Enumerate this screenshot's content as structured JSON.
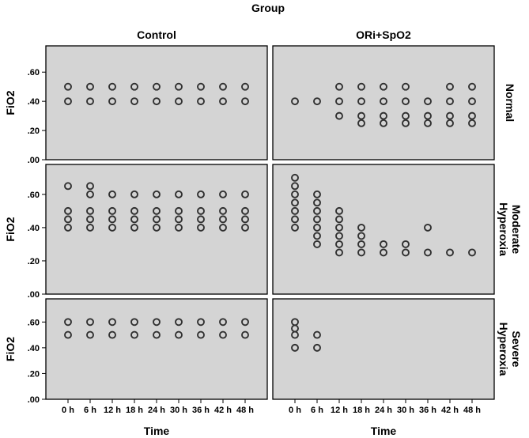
{
  "chart_data": {
    "type": "scatter",
    "title": "Group",
    "xlabel": "Time",
    "ylabel": "FiO2",
    "columns": [
      "Control",
      "ORi+SpO2"
    ],
    "rows": [
      "Normal",
      "Moderate\nHyperoxia",
      "Severe\nHyperoxia"
    ],
    "x_categories": [
      "0 h",
      "6 h",
      "12 h",
      "18 h",
      "24 h",
      "30 h",
      "36 h",
      "42 h",
      "48 h"
    ],
    "y_ticks": [
      ".00",
      ".20",
      ".40",
      ".60"
    ],
    "ylim": [
      0,
      0.78
    ],
    "grid": false,
    "panel_background": "#d4d4d4",
    "marker_color": "#303030",
    "panels": [
      {
        "row": "Normal",
        "column": "Control",
        "points": [
          [
            "0 h",
            0.5
          ],
          [
            "0 h",
            0.4
          ],
          [
            "6 h",
            0.5
          ],
          [
            "6 h",
            0.4
          ],
          [
            "12 h",
            0.5
          ],
          [
            "12 h",
            0.4
          ],
          [
            "18 h",
            0.5
          ],
          [
            "18 h",
            0.4
          ],
          [
            "24 h",
            0.5
          ],
          [
            "24 h",
            0.4
          ],
          [
            "30 h",
            0.5
          ],
          [
            "30 h",
            0.4
          ],
          [
            "36 h",
            0.5
          ],
          [
            "36 h",
            0.4
          ],
          [
            "42 h",
            0.5
          ],
          [
            "42 h",
            0.4
          ],
          [
            "48 h",
            0.5
          ],
          [
            "48 h",
            0.4
          ]
        ]
      },
      {
        "row": "Normal",
        "column": "ORi+SpO2",
        "points": [
          [
            "0 h",
            0.4
          ],
          [
            "6 h",
            0.4
          ],
          [
            "12 h",
            0.5
          ],
          [
            "12 h",
            0.4
          ],
          [
            "12 h",
            0.3
          ],
          [
            "18 h",
            0.5
          ],
          [
            "18 h",
            0.4
          ],
          [
            "18 h",
            0.3
          ],
          [
            "18 h",
            0.25
          ],
          [
            "24 h",
            0.5
          ],
          [
            "24 h",
            0.4
          ],
          [
            "24 h",
            0.3
          ],
          [
            "24 h",
            0.25
          ],
          [
            "30 h",
            0.5
          ],
          [
            "30 h",
            0.4
          ],
          [
            "30 h",
            0.3
          ],
          [
            "30 h",
            0.25
          ],
          [
            "36 h",
            0.4
          ],
          [
            "36 h",
            0.3
          ],
          [
            "36 h",
            0.25
          ],
          [
            "42 h",
            0.5
          ],
          [
            "42 h",
            0.4
          ],
          [
            "42 h",
            0.3
          ],
          [
            "42 h",
            0.25
          ],
          [
            "48 h",
            0.5
          ],
          [
            "48 h",
            0.4
          ],
          [
            "48 h",
            0.3
          ],
          [
            "48 h",
            0.25
          ]
        ]
      },
      {
        "row": "Moderate\nHyperoxia",
        "column": "Control",
        "points": [
          [
            "0 h",
            0.65
          ],
          [
            "0 h",
            0.5
          ],
          [
            "0 h",
            0.45
          ],
          [
            "0 h",
            0.4
          ],
          [
            "6 h",
            0.65
          ],
          [
            "6 h",
            0.6
          ],
          [
            "6 h",
            0.5
          ],
          [
            "6 h",
            0.45
          ],
          [
            "6 h",
            0.4
          ],
          [
            "12 h",
            0.6
          ],
          [
            "12 h",
            0.5
          ],
          [
            "12 h",
            0.45
          ],
          [
            "12 h",
            0.4
          ],
          [
            "18 h",
            0.6
          ],
          [
            "18 h",
            0.5
          ],
          [
            "18 h",
            0.45
          ],
          [
            "18 h",
            0.4
          ],
          [
            "24 h",
            0.6
          ],
          [
            "24 h",
            0.5
          ],
          [
            "24 h",
            0.45
          ],
          [
            "24 h",
            0.4
          ],
          [
            "30 h",
            0.6
          ],
          [
            "30 h",
            0.5
          ],
          [
            "30 h",
            0.45
          ],
          [
            "30 h",
            0.4
          ],
          [
            "36 h",
            0.6
          ],
          [
            "36 h",
            0.5
          ],
          [
            "36 h",
            0.45
          ],
          [
            "36 h",
            0.4
          ],
          [
            "42 h",
            0.6
          ],
          [
            "42 h",
            0.5
          ],
          [
            "42 h",
            0.45
          ],
          [
            "42 h",
            0.4
          ],
          [
            "48 h",
            0.6
          ],
          [
            "48 h",
            0.5
          ],
          [
            "48 h",
            0.45
          ],
          [
            "48 h",
            0.4
          ]
        ]
      },
      {
        "row": "Moderate\nHyperoxia",
        "column": "ORi+SpO2",
        "points": [
          [
            "0 h",
            0.7
          ],
          [
            "0 h",
            0.65
          ],
          [
            "0 h",
            0.6
          ],
          [
            "0 h",
            0.55
          ],
          [
            "0 h",
            0.5
          ],
          [
            "0 h",
            0.45
          ],
          [
            "0 h",
            0.4
          ],
          [
            "6 h",
            0.6
          ],
          [
            "6 h",
            0.55
          ],
          [
            "6 h",
            0.5
          ],
          [
            "6 h",
            0.45
          ],
          [
            "6 h",
            0.4
          ],
          [
            "6 h",
            0.35
          ],
          [
            "6 h",
            0.3
          ],
          [
            "12 h",
            0.5
          ],
          [
            "12 h",
            0.45
          ],
          [
            "12 h",
            0.4
          ],
          [
            "12 h",
            0.35
          ],
          [
            "12 h",
            0.3
          ],
          [
            "12 h",
            0.25
          ],
          [
            "18 h",
            0.4
          ],
          [
            "18 h",
            0.35
          ],
          [
            "18 h",
            0.3
          ],
          [
            "18 h",
            0.25
          ],
          [
            "24 h",
            0.3
          ],
          [
            "24 h",
            0.25
          ],
          [
            "30 h",
            0.3
          ],
          [
            "30 h",
            0.25
          ],
          [
            "36 h",
            0.4
          ],
          [
            "36 h",
            0.25
          ],
          [
            "42 h",
            0.25
          ],
          [
            "48 h",
            0.25
          ]
        ]
      },
      {
        "row": "Severe\nHyperoxia",
        "column": "Control",
        "points": [
          [
            "0 h",
            0.6
          ],
          [
            "0 h",
            0.5
          ],
          [
            "6 h",
            0.6
          ],
          [
            "6 h",
            0.5
          ],
          [
            "12 h",
            0.6
          ],
          [
            "12 h",
            0.5
          ],
          [
            "18 h",
            0.6
          ],
          [
            "18 h",
            0.5
          ],
          [
            "24 h",
            0.6
          ],
          [
            "24 h",
            0.5
          ],
          [
            "30 h",
            0.6
          ],
          [
            "30 h",
            0.5
          ],
          [
            "36 h",
            0.6
          ],
          [
            "36 h",
            0.5
          ],
          [
            "42 h",
            0.6
          ],
          [
            "42 h",
            0.5
          ],
          [
            "48 h",
            0.6
          ],
          [
            "48 h",
            0.5
          ]
        ]
      },
      {
        "row": "Severe\nHyperoxia",
        "column": "ORi+SpO2",
        "points": [
          [
            "0 h",
            0.6
          ],
          [
            "0 h",
            0.55
          ],
          [
            "0 h",
            0.5
          ],
          [
            "0 h",
            0.4
          ],
          [
            "6 h",
            0.5
          ],
          [
            "6 h",
            0.4
          ]
        ]
      }
    ]
  }
}
